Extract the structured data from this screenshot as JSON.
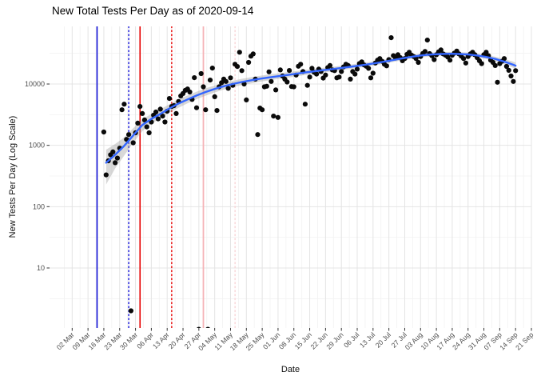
{
  "chart": {
    "title": "New Total Tests Per Day as of 2020-09-14",
    "xlabel": "Date",
    "ylabel": "New Tests Per Day (Log Scale)"
  },
  "chart_data": {
    "type": "scatter",
    "title": "New Total Tests Per Day as of 2020-09-14",
    "xlabel": "Date",
    "ylabel": "New Tests Per Day (Log Scale)",
    "y_scale": "log10",
    "grid": true,
    "legend": "none",
    "panel": {
      "l": 62,
      "t": 33,
      "r": 665,
      "b": 410
    },
    "x_domain": [
      "2020-02-21",
      "2020-09-21"
    ],
    "y_domain": [
      1.05,
      87000
    ],
    "y_ticks": [
      [
        10,
        "10"
      ],
      [
        100,
        "100"
      ],
      [
        1000,
        "1000"
      ],
      [
        10000,
        "10000"
      ]
    ],
    "y_minor_ticks": [
      3.162,
      31.62,
      316.2,
      3162,
      31620
    ],
    "x_ticks": [
      [
        "2020-03-02",
        "02 Mar"
      ],
      [
        "2020-03-09",
        "09 Mar"
      ],
      [
        "2020-03-16",
        "16 Mar"
      ],
      [
        "2020-03-23",
        "23 Mar"
      ],
      [
        "2020-03-30",
        "30 Mar"
      ],
      [
        "2020-04-06",
        "06 Apr"
      ],
      [
        "2020-04-13",
        "13 Apr"
      ],
      [
        "2020-04-20",
        "20 Apr"
      ],
      [
        "2020-04-27",
        "27 Apr"
      ],
      [
        "2020-05-04",
        "04 May"
      ],
      [
        "2020-05-11",
        "11 May"
      ],
      [
        "2020-05-18",
        "18 May"
      ],
      [
        "2020-05-25",
        "25 May"
      ],
      [
        "2020-06-01",
        "01 Jun"
      ],
      [
        "2020-06-08",
        "08 Jun"
      ],
      [
        "2020-06-15",
        "15 Jun"
      ],
      [
        "2020-06-22",
        "22 Jun"
      ],
      [
        "2020-06-29",
        "29 Jun"
      ],
      [
        "2020-07-06",
        "06 Jul"
      ],
      [
        "2020-07-13",
        "13 Jul"
      ],
      [
        "2020-07-20",
        "20 Jul"
      ],
      [
        "2020-07-27",
        "27 Jul"
      ],
      [
        "2020-08-03",
        "03 Aug"
      ],
      [
        "2020-08-10",
        "10 Aug"
      ],
      [
        "2020-08-17",
        "17 Aug"
      ],
      [
        "2020-08-24",
        "24 Aug"
      ],
      [
        "2020-08-31",
        "31 Aug"
      ],
      [
        "2020-09-07",
        "07 Sep"
      ],
      [
        "2020-09-14",
        "14 Sep"
      ],
      [
        "2020-09-21",
        "21 Sep"
      ]
    ],
    "vlines": [
      {
        "date": "2020-03-13",
        "color": "#0f0fd6",
        "dash": "solid",
        "width": 1.6
      },
      {
        "date": "2020-03-27",
        "color": "#0f0fd6",
        "dash": "dotted",
        "width": 1.4
      },
      {
        "date": "2020-04-01",
        "color": "#e60000",
        "dash": "solid",
        "width": 1.6
      },
      {
        "date": "2020-04-15",
        "color": "#e60000",
        "dash": "dotted",
        "width": 1.4
      },
      {
        "date": "2020-04-29",
        "color": "#f5b3b7",
        "dash": "solid",
        "width": 1.8
      },
      {
        "date": "2020-05-13",
        "color": "#f8d4d6",
        "dash": "dotted",
        "width": 1.4
      }
    ],
    "colors": {
      "point": "#0a0a0a",
      "smooth_line": "#3366FF",
      "ribbon": "#999999",
      "grid_major": "#e4e4e4",
      "grid_minor": "#f2f2f2",
      "axis_text": "#4d4d4d",
      "tick_mark": "#333333"
    },
    "smooth": [
      [
        "03-17",
        520,
        230,
        850
      ],
      [
        "03-21",
        700,
        420,
        1050
      ],
      [
        "03-25",
        980,
        680,
        1350
      ],
      [
        "03-29",
        1450,
        1100,
        1900
      ],
      [
        "04-02",
        2150,
        1700,
        2650
      ],
      [
        "04-06",
        2700,
        2250,
        3250
      ],
      [
        "04-10",
        3250,
        2750,
        3850
      ],
      [
        "04-14",
        4000,
        3400,
        4700
      ],
      [
        "04-18",
        4800,
        4100,
        5600
      ],
      [
        "04-22",
        5600,
        4850,
        6500
      ],
      [
        "04-26",
        6500,
        5650,
        7500
      ],
      [
        "04-30",
        7400,
        6450,
        8500
      ],
      [
        "05-04",
        8300,
        7300,
        9450
      ],
      [
        "05-08",
        9200,
        8100,
        10450
      ],
      [
        "05-12",
        10000,
        8850,
        11300
      ],
      [
        "05-16",
        10800,
        9600,
        12150
      ],
      [
        "05-20",
        11500,
        10250,
        12900
      ],
      [
        "05-24",
        12200,
        10900,
        13650
      ],
      [
        "05-28",
        12800,
        11450,
        14300
      ],
      [
        "06-01",
        13400,
        12050,
        14900
      ],
      [
        "06-05",
        14000,
        12650,
        15500
      ],
      [
        "06-09",
        14700,
        13300,
        16250
      ],
      [
        "06-13",
        15400,
        14000,
        16950
      ],
      [
        "06-17",
        16100,
        14700,
        17650
      ],
      [
        "06-21",
        16800,
        15400,
        18350
      ],
      [
        "06-25",
        17500,
        16100,
        19050
      ],
      [
        "06-29",
        18300,
        16850,
        19900
      ],
      [
        "07-03",
        19100,
        17650,
        20700
      ],
      [
        "07-07",
        20000,
        18500,
        21650
      ],
      [
        "07-11",
        21000,
        19450,
        22700
      ],
      [
        "07-15",
        22200,
        20600,
        23950
      ],
      [
        "07-19",
        23500,
        21850,
        25300
      ],
      [
        "07-23",
        25000,
        23250,
        26900
      ],
      [
        "07-27",
        26600,
        24750,
        28600
      ],
      [
        "07-31",
        28100,
        26150,
        30200
      ],
      [
        "08-04",
        29400,
        27400,
        31550
      ],
      [
        "08-08",
        30300,
        28250,
        32500
      ],
      [
        "08-12",
        30900,
        28800,
        33150
      ],
      [
        "08-16",
        31100,
        29000,
        33350
      ],
      [
        "08-20",
        30900,
        28800,
        33150
      ],
      [
        "08-24",
        30300,
        28200,
        32550
      ],
      [
        "08-28",
        29200,
        27100,
        31450
      ],
      [
        "09-01",
        27600,
        25500,
        29850
      ],
      [
        "09-05",
        25600,
        23500,
        27900
      ],
      [
        "09-09",
        23200,
        21050,
        25600
      ],
      [
        "09-13",
        20600,
        18350,
        23100
      ],
      [
        "09-14",
        19900,
        17600,
        22400
      ]
    ],
    "points": [
      [
        "03-16",
        1650
      ],
      [
        "03-17",
        330
      ],
      [
        "03-18",
        560
      ],
      [
        "03-19",
        700
      ],
      [
        "03-20",
        780
      ],
      [
        "03-21",
        520
      ],
      [
        "03-22",
        620
      ],
      [
        "03-23",
        900
      ],
      [
        "03-24",
        3800
      ],
      [
        "03-25",
        4700
      ],
      [
        "03-26",
        1250
      ],
      [
        "03-27",
        1500
      ],
      [
        "03-28",
        2
      ],
      [
        "03-29",
        1100
      ],
      [
        "03-30",
        1600
      ],
      [
        "03-31",
        2300
      ],
      [
        "04-01",
        4300
      ],
      [
        "04-02",
        3300
      ],
      [
        "04-03",
        2600
      ],
      [
        "04-04",
        2000
      ],
      [
        "04-05",
        1600
      ],
      [
        "04-06",
        2400
      ],
      [
        "04-07",
        3100
      ],
      [
        "04-08",
        3500
      ],
      [
        "04-09",
        2700
      ],
      [
        "04-10",
        3900
      ],
      [
        "04-11",
        3000
      ],
      [
        "04-12",
        2400
      ],
      [
        "04-13",
        3600
      ],
      [
        "04-14",
        5800
      ],
      [
        "04-15",
        4300
      ],
      [
        "04-16",
        4450
      ],
      [
        "04-17",
        3300
      ],
      [
        "04-18",
        5200
      ],
      [
        "04-19",
        6400
      ],
      [
        "04-20",
        7000
      ],
      [
        "04-21",
        7900
      ],
      [
        "04-22",
        8300
      ],
      [
        "04-23",
        7400
      ],
      [
        "04-24",
        5600
      ],
      [
        "04-25",
        12700
      ],
      [
        "04-26",
        4100
      ],
      [
        "04-27",
        1
      ],
      [
        "04-28",
        14800
      ],
      [
        "04-29",
        9000
      ],
      [
        "04-30",
        3800
      ],
      [
        "05-01",
        1
      ],
      [
        "05-02",
        11600
      ],
      [
        "05-03",
        18200
      ],
      [
        "05-04",
        6200
      ],
      [
        "05-05",
        3700
      ],
      [
        "05-06",
        9000
      ],
      [
        "05-07",
        10500
      ],
      [
        "05-08",
        12000
      ],
      [
        "05-09",
        11000
      ],
      [
        "05-10",
        8500
      ],
      [
        "05-11",
        12600
      ],
      [
        "05-12",
        9500
      ],
      [
        "05-13",
        21000
      ],
      [
        "05-14",
        19300
      ],
      [
        "05-15",
        33000
      ],
      [
        "05-16",
        16500
      ],
      [
        "05-17",
        10000
      ],
      [
        "05-18",
        5500
      ],
      [
        "05-19",
        22500
      ],
      [
        "05-20",
        28500
      ],
      [
        "05-21",
        31000
      ],
      [
        "05-22",
        12000
      ],
      [
        "05-23",
        1500
      ],
      [
        "05-24",
        4050
      ],
      [
        "05-25",
        3800
      ],
      [
        "05-26",
        9000
      ],
      [
        "05-27",
        9200
      ],
      [
        "05-28",
        15800
      ],
      [
        "05-29",
        11000
      ],
      [
        "05-30",
        3000
      ],
      [
        "05-31",
        8000
      ],
      [
        "06-01",
        2850
      ],
      [
        "06-02",
        17000
      ],
      [
        "06-03",
        13500
      ],
      [
        "06-04",
        12000
      ],
      [
        "06-05",
        10800
      ],
      [
        "06-06",
        16600
      ],
      [
        "06-07",
        9100
      ],
      [
        "06-08",
        9000
      ],
      [
        "06-09",
        14000
      ],
      [
        "06-10",
        19500
      ],
      [
        "06-11",
        21000
      ],
      [
        "06-12",
        16000
      ],
      [
        "06-13",
        4700
      ],
      [
        "06-14",
        9500
      ],
      [
        "06-15",
        13000
      ],
      [
        "06-16",
        18000
      ],
      [
        "06-17",
        15500
      ],
      [
        "06-18",
        14500
      ],
      [
        "06-19",
        17500
      ],
      [
        "06-20",
        16000
      ],
      [
        "06-21",
        12500
      ],
      [
        "06-22",
        14000
      ],
      [
        "06-23",
        18500
      ],
      [
        "06-24",
        20000
      ],
      [
        "06-25",
        17000
      ],
      [
        "06-26",
        16500
      ],
      [
        "06-27",
        12600
      ],
      [
        "06-28",
        13000
      ],
      [
        "06-29",
        16000
      ],
      [
        "06-30",
        19000
      ],
      [
        "07-01",
        21000
      ],
      [
        "07-02",
        20000
      ],
      [
        "07-03",
        12000
      ],
      [
        "07-04",
        16000
      ],
      [
        "07-05",
        14500
      ],
      [
        "07-06",
        17500
      ],
      [
        "07-07",
        21500
      ],
      [
        "07-08",
        23000
      ],
      [
        "07-09",
        20500
      ],
      [
        "07-10",
        19500
      ],
      [
        "07-11",
        18000
      ],
      [
        "07-12",
        12600
      ],
      [
        "07-13",
        15000
      ],
      [
        "07-14",
        22000
      ],
      [
        "07-15",
        24500
      ],
      [
        "07-16",
        26000
      ],
      [
        "07-17",
        23500
      ],
      [
        "07-18",
        21000
      ],
      [
        "07-19",
        19800
      ],
      [
        "07-20",
        25000
      ],
      [
        "07-21",
        57000
      ],
      [
        "07-22",
        29000
      ],
      [
        "07-23",
        26500
      ],
      [
        "07-24",
        30000
      ],
      [
        "07-25",
        27000
      ],
      [
        "07-26",
        24000
      ],
      [
        "07-27",
        26000
      ],
      [
        "07-28",
        30500
      ],
      [
        "07-29",
        33000
      ],
      [
        "07-30",
        29500
      ],
      [
        "07-31",
        28000
      ],
      [
        "08-01",
        26000
      ],
      [
        "08-02",
        22500
      ],
      [
        "08-03",
        28000
      ],
      [
        "08-04",
        31500
      ],
      [
        "08-05",
        34000
      ],
      [
        "08-06",
        52000
      ],
      [
        "08-07",
        31300
      ],
      [
        "08-08",
        29000
      ],
      [
        "08-09",
        25000
      ],
      [
        "08-10",
        30000
      ],
      [
        "08-11",
        33500
      ],
      [
        "08-12",
        36000
      ],
      [
        "08-13",
        31000
      ],
      [
        "08-14",
        29600
      ],
      [
        "08-15",
        27500
      ],
      [
        "08-16",
        24500
      ],
      [
        "08-17",
        29500
      ],
      [
        "08-18",
        32000
      ],
      [
        "08-19",
        34500
      ],
      [
        "08-20",
        31000
      ],
      [
        "08-21",
        28500
      ],
      [
        "08-22",
        26000
      ],
      [
        "08-23",
        22000
      ],
      [
        "08-24",
        28000
      ],
      [
        "08-25",
        31000
      ],
      [
        "08-26",
        33000
      ],
      [
        "08-27",
        30000
      ],
      [
        "08-28",
        27000
      ],
      [
        "08-29",
        24000
      ],
      [
        "08-30",
        21500
      ],
      [
        "08-31",
        30000
      ],
      [
        "09-01",
        33000
      ],
      [
        "09-02",
        29000
      ],
      [
        "09-03",
        24500
      ],
      [
        "09-04",
        22500
      ],
      [
        "09-05",
        20000
      ],
      [
        "09-06",
        10700
      ],
      [
        "09-07",
        21500
      ],
      [
        "09-08",
        23500
      ],
      [
        "09-09",
        26000
      ],
      [
        "09-10",
        19400
      ],
      [
        "09-11",
        16700
      ],
      [
        "09-12",
        13500
      ],
      [
        "09-13",
        11000
      ],
      [
        "09-14",
        16500
      ]
    ]
  }
}
